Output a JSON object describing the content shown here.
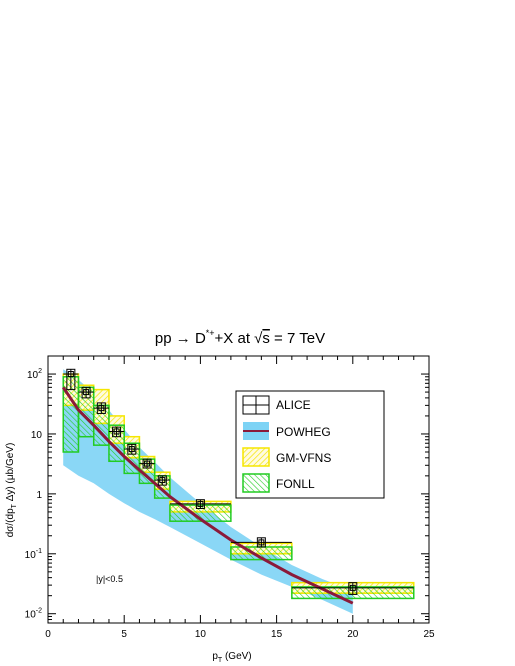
{
  "chart_data": {
    "type": "line",
    "title": "pp → D*+ +X at √s = 7 TeV",
    "title_parts": {
      "main": "pp → D",
      "sup": "*+",
      "rest": "+X at ",
      "sqrt": "√",
      "s": "s",
      "end": " = 7 TeV"
    },
    "xlabel": "p",
    "xlabel_sub": "T",
    "xlabel_unit": " (GeV)",
    "ylabel_a": "dσ/(dp",
    "ylabel_sub": "T",
    "ylabel_b": " Δy) (μb/GeV)",
    "xlim": [
      0,
      25
    ],
    "ylim": [
      0.007,
      200
    ],
    "yscale": "log",
    "x_ticks": [
      "0",
      "5",
      "10",
      "15",
      "20",
      "25"
    ],
    "y_ticks": [
      {
        "v": 0.01,
        "base": "10",
        "exp": "-2"
      },
      {
        "v": 0.1,
        "base": "10",
        "exp": "-1"
      },
      {
        "v": 1,
        "base": "1",
        "exp": ""
      },
      {
        "v": 10,
        "base": "10",
        "exp": ""
      },
      {
        "v": 100,
        "base": "10",
        "exp": "2"
      }
    ],
    "annotation": "|y|<0.5",
    "legend": {
      "placement": "top-right",
      "entries": [
        "ALICE",
        "POWHEG",
        "GM-VFNS",
        "FONLL"
      ]
    },
    "bins": [
      {
        "lo": 1,
        "hi": 2
      },
      {
        "lo": 2,
        "hi": 3
      },
      {
        "lo": 3,
        "hi": 4
      },
      {
        "lo": 4,
        "hi": 5
      },
      {
        "lo": 5,
        "hi": 6
      },
      {
        "lo": 6,
        "hi": 7
      },
      {
        "lo": 7,
        "hi": 8
      },
      {
        "lo": 8,
        "hi": 12
      },
      {
        "lo": 12,
        "hi": 16
      },
      {
        "lo": 16,
        "hi": 24
      }
    ],
    "alice": [
      {
        "x": 1.5,
        "xerr": 0.5,
        "y": 100,
        "syst_lo": 55,
        "syst_hi": 120
      },
      {
        "x": 2.5,
        "xerr": 0.5,
        "y": 50,
        "syst_lo": 40,
        "syst_hi": 60
      },
      {
        "x": 3.5,
        "xerr": 0.5,
        "y": 27,
        "syst_lo": 22,
        "syst_hi": 33
      },
      {
        "x": 4.5,
        "xerr": 0.5,
        "y": 11,
        "syst_lo": 9,
        "syst_hi": 13
      },
      {
        "x": 5.5,
        "xerr": 0.5,
        "y": 5.6,
        "syst_lo": 4.6,
        "syst_hi": 6.7
      },
      {
        "x": 6.5,
        "xerr": 0.5,
        "y": 3.2,
        "syst_lo": 2.7,
        "syst_hi": 3.8
      },
      {
        "x": 7.5,
        "xerr": 0.5,
        "y": 1.7,
        "syst_lo": 1.4,
        "syst_hi": 2.0
      },
      {
        "x": 10,
        "xerr": 2,
        "y": 0.68,
        "syst_lo": 0.57,
        "syst_hi": 0.8
      },
      {
        "x": 14,
        "xerr": 2,
        "y": 0.155,
        "syst_lo": 0.13,
        "syst_hi": 0.185
      },
      {
        "x": 20,
        "xerr": 4,
        "y": 0.027,
        "syst_lo": 0.021,
        "syst_hi": 0.033
      }
    ],
    "gmvfns": [
      {
        "lo": 1,
        "hi": 2,
        "y_lo": 30,
        "y_hi": 100
      },
      {
        "lo": 2,
        "hi": 3,
        "y_lo": 25,
        "y_hi": 65
      },
      {
        "lo": 3,
        "hi": 4,
        "y_lo": 15,
        "y_hi": 55
      },
      {
        "lo": 4,
        "hi": 5,
        "y_lo": 7,
        "y_hi": 20
      },
      {
        "lo": 5,
        "hi": 6,
        "y_lo": 4,
        "y_hi": 9
      },
      {
        "lo": 6,
        "hi": 7,
        "y_lo": 2.3,
        "y_hi": 4.2
      },
      {
        "lo": 7,
        "hi": 8,
        "y_lo": 1.2,
        "y_hi": 2.3
      },
      {
        "lo": 8,
        "hi": 12,
        "y_lo": 0.5,
        "y_hi": 0.75
      },
      {
        "lo": 12,
        "hi": 16,
        "y_lo": 0.1,
        "y_hi": 0.15
      },
      {
        "lo": 16,
        "hi": 24,
        "y_lo": 0.022,
        "y_hi": 0.033
      }
    ],
    "fonll": [
      {
        "lo": 1,
        "hi": 2,
        "y_lo": 5,
        "y_hi": 90
      },
      {
        "lo": 2,
        "hi": 3,
        "y_lo": 9,
        "y_hi": 60
      },
      {
        "lo": 3,
        "hi": 4,
        "y_lo": 6.5,
        "y_hi": 30
      },
      {
        "lo": 4,
        "hi": 5,
        "y_lo": 3.5,
        "y_hi": 14
      },
      {
        "lo": 5,
        "hi": 6,
        "y_lo": 2.2,
        "y_hi": 7
      },
      {
        "lo": 6,
        "hi": 7,
        "y_lo": 1.5,
        "y_hi": 3.8
      },
      {
        "lo": 7,
        "hi": 8,
        "y_lo": 0.85,
        "y_hi": 2
      },
      {
        "lo": 8,
        "hi": 12,
        "y_lo": 0.35,
        "y_hi": 0.65
      },
      {
        "lo": 12,
        "hi": 16,
        "y_lo": 0.08,
        "y_hi": 0.13
      },
      {
        "lo": 16,
        "hi": 24,
        "y_lo": 0.018,
        "y_hi": 0.028
      }
    ],
    "powheg": {
      "x": [
        1,
        2,
        3,
        4,
        5,
        6,
        7,
        8,
        10,
        12,
        14,
        16,
        18,
        20
      ],
      "central": [
        60,
        25,
        14,
        7.5,
        4.2,
        2.5,
        1.5,
        0.9,
        0.38,
        0.17,
        0.085,
        0.045,
        0.026,
        0.015
      ],
      "lower": [
        3,
        2,
        1.5,
        1.0,
        0.7,
        0.5,
        0.38,
        0.28,
        0.15,
        0.08,
        0.045,
        0.028,
        0.017,
        0.01
      ],
      "upper": [
        120,
        80,
        48,
        25,
        12,
        6,
        3.4,
        1.9,
        0.7,
        0.28,
        0.13,
        0.065,
        0.038,
        0.024
      ]
    },
    "colors": {
      "powheg_band": "#7dd3f5",
      "powheg_line": "#8b1a3a",
      "gmvfns": "#f5e600",
      "fonll": "#22cc22",
      "alice": "#000000"
    }
  }
}
